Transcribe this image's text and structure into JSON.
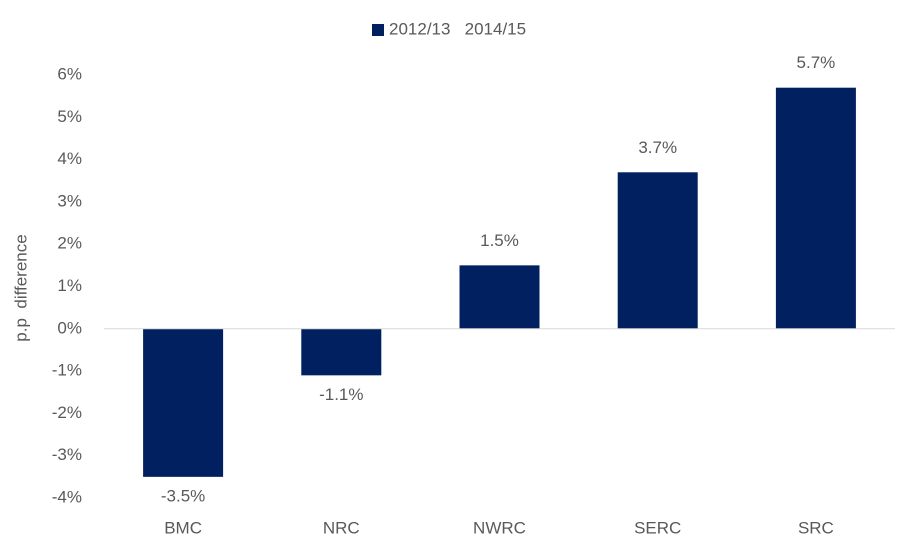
{
  "chart_data": {
    "type": "bar",
    "y_label": "p.p  difference",
    "categories": [
      "BMC",
      "NRC",
      "NWRC",
      "SERC",
      "SRC"
    ],
    "series": [
      {
        "name": "2012/13   2014/15",
        "color": "#002060",
        "values": [
          -3.5,
          -1.1,
          1.5,
          3.7,
          5.7
        ],
        "value_labels": [
          "-3.5%",
          "-1.1%",
          "1.5%",
          "3.7%",
          "5.7%"
        ]
      }
    ],
    "ylim": [
      -4,
      6
    ],
    "yticks": [
      {
        "value": -4,
        "label": "-4%"
      },
      {
        "value": -3,
        "label": "-3%"
      },
      {
        "value": -2,
        "label": "-2%"
      },
      {
        "value": -1,
        "label": "-1%"
      },
      {
        "value": 0,
        "label": "0%"
      },
      {
        "value": 1,
        "label": "1%"
      },
      {
        "value": 2,
        "label": "2%"
      },
      {
        "value": 3,
        "label": "3%"
      },
      {
        "value": 4,
        "label": "4%"
      },
      {
        "value": 5,
        "label": "5%"
      },
      {
        "value": 6,
        "label": "6%"
      }
    ],
    "grid": false,
    "legend": "top"
  }
}
